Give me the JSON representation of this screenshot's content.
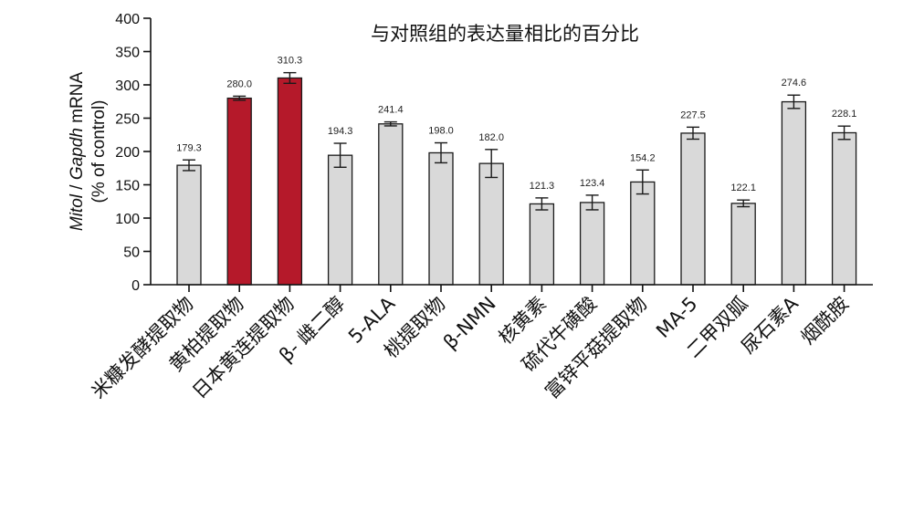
{
  "chart_data": {
    "type": "bar",
    "title": "与对照组的表达量相比的百分比",
    "xlabel": "",
    "ylabel_line1_italic_a": "Mitol",
    "ylabel_line1_sep": " / ",
    "ylabel_line1_italic_b": "Gapdh",
    "ylabel_line1_rest": " mRNA",
    "ylabel_line2": "(% of control)",
    "ylim": [
      0,
      400
    ],
    "yticks": [
      0,
      50,
      100,
      150,
      200,
      250,
      300,
      350,
      400
    ],
    "grid": false,
    "legend": null,
    "categories": [
      "米糠发酵提取物",
      "黄柏提取物",
      "日本黄连提取物",
      "β- 雌二醇",
      "5-ALA",
      "桃提取物",
      "β-NMN",
      "核黄素",
      "硫代牛磺酸",
      "富锌平菇提取物",
      "MA-5",
      "二甲双胍",
      "尿石素A",
      "烟酰胺"
    ],
    "values": [
      179.3,
      280.0,
      310.3,
      194.3,
      241.4,
      198.0,
      182.0,
      121.3,
      123.4,
      154.2,
      227.5,
      122.1,
      274.6,
      228.1
    ],
    "value_labels": [
      "179.3",
      "280.0",
      "310.3",
      "194.3",
      "241.4",
      "198.0",
      "182.0",
      "121.3",
      "123.4",
      "154.2",
      "227.5",
      "122.1",
      "274.6",
      "228.1"
    ],
    "error": [
      8,
      3,
      8,
      18,
      3,
      15,
      21,
      9,
      11,
      18,
      9,
      5,
      10,
      10
    ],
    "highlight_indices": [
      1,
      2
    ],
    "colors": {
      "default_bar": "#d9d9d9",
      "highlight_bar": "#b5192a",
      "outline": "#1a1a1a",
      "axis": "#111111"
    }
  }
}
